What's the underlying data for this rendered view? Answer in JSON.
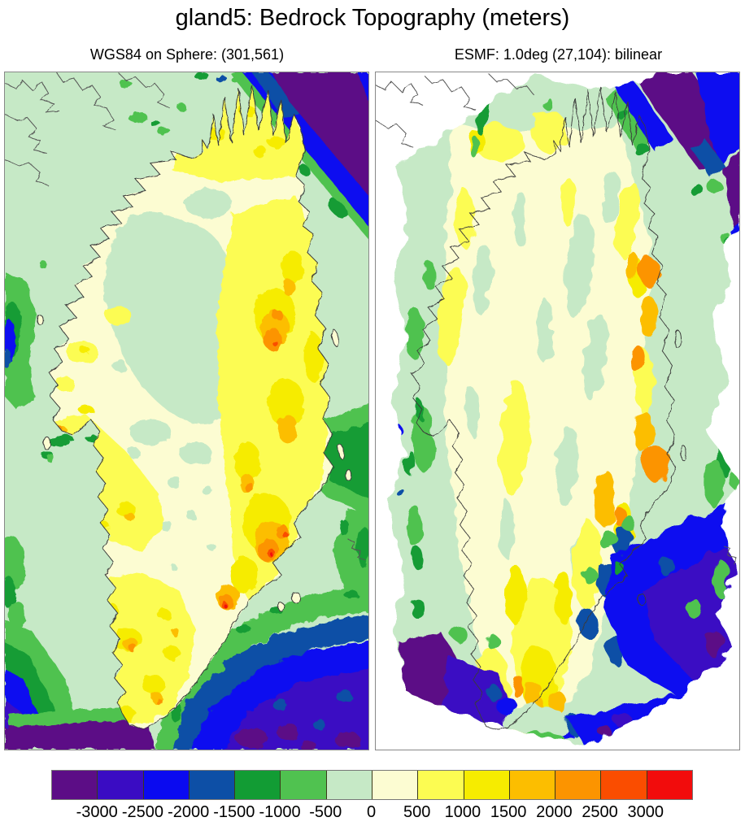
{
  "figure": {
    "title": "gland5: Bedrock Topography (meters)"
  },
  "panels": {
    "left": {
      "title": "WGS84 on Sphere: (301,561)"
    },
    "right": {
      "title": "ESMF: 1.0deg (27,104): bilinear"
    }
  },
  "colorbar": {
    "units": "meters",
    "colors": [
      "#5C0D86",
      "#3A0CC3",
      "#0A0AF0",
      "#0D4FA6",
      "#129C34",
      "#50C250",
      "#C6E9C6",
      "#FCFCD2",
      "#FCFC52",
      "#F6EC00",
      "#FCBE00",
      "#FC9400",
      "#FA4D00",
      "#F20C0C"
    ],
    "tick_labels": [
      "-3000",
      "-2500",
      "-2000",
      "-1500",
      "-1000",
      "-500",
      "0",
      "500",
      "1000",
      "1500",
      "2000",
      "2500",
      "3000"
    ]
  }
}
